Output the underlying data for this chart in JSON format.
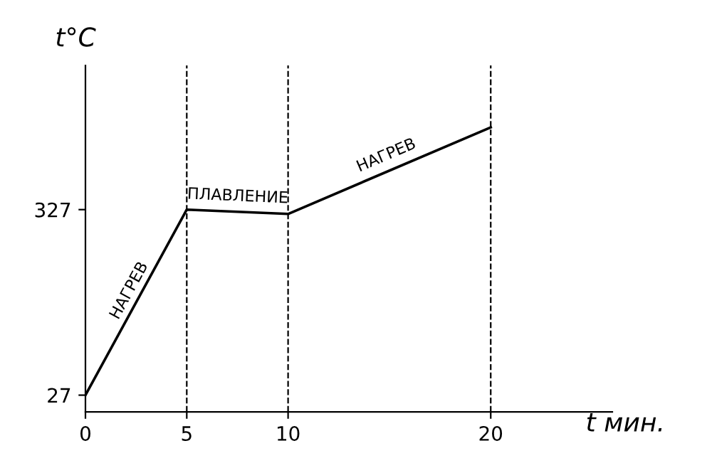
{
  "chart_data": {
    "type": "line",
    "x": [
      0,
      5,
      10,
      20
    ],
    "values": [
      27,
      327,
      320,
      460
    ],
    "color": "#000000",
    "xlabel": "t мин.",
    "ylabel": "t°C",
    "xlim": [
      0,
      26
    ],
    "ylim": [
      0,
      560
    ],
    "xticks": [
      0,
      5,
      10,
      20
    ],
    "yticks": [
      27,
      327
    ],
    "grid": false,
    "ref_lines": [
      {
        "axis": "x",
        "value": 5,
        "line_style": "dashed"
      },
      {
        "axis": "x",
        "value": 10,
        "line_style": "dashed"
      },
      {
        "axis": "x",
        "value": 20,
        "line_style": "dashed"
      }
    ],
    "annotations": [
      {
        "text": "НАГРЕВ",
        "x": 2.5,
        "y": 177
      },
      {
        "text": "ПЛАВЛЕНИЕ",
        "x": 7.5,
        "y": 323
      },
      {
        "text": "НАГРЕВ",
        "x": 15,
        "y": 390
      }
    ]
  }
}
